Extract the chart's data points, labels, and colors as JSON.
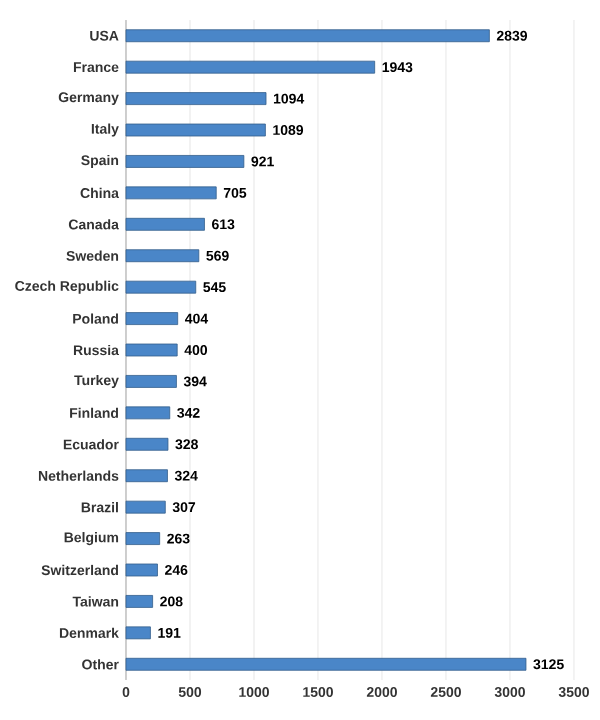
{
  "chart_data": {
    "type": "bar",
    "orientation": "horizontal",
    "categories": [
      "USA",
      "France",
      "Germany",
      "Italy",
      "Spain",
      "China",
      "Canada",
      "Sweden",
      "Czech Republic",
      "Poland",
      "Russia",
      "Turkey",
      "Finland",
      "Ecuador",
      "Netherlands",
      "Brazil",
      "Belgium",
      "Switzerland",
      "Taiwan",
      "Denmark",
      "Other"
    ],
    "values": [
      2839,
      1943,
      1094,
      1089,
      921,
      705,
      613,
      569,
      545,
      404,
      400,
      394,
      342,
      328,
      324,
      307,
      263,
      246,
      208,
      191,
      3125
    ],
    "color": "#4a86c8",
    "xlim": [
      0,
      3500
    ],
    "xticks": [
      0,
      500,
      1000,
      1500,
      2000,
      2500,
      3000,
      3500
    ],
    "grid": "x",
    "data_labels": true
  }
}
